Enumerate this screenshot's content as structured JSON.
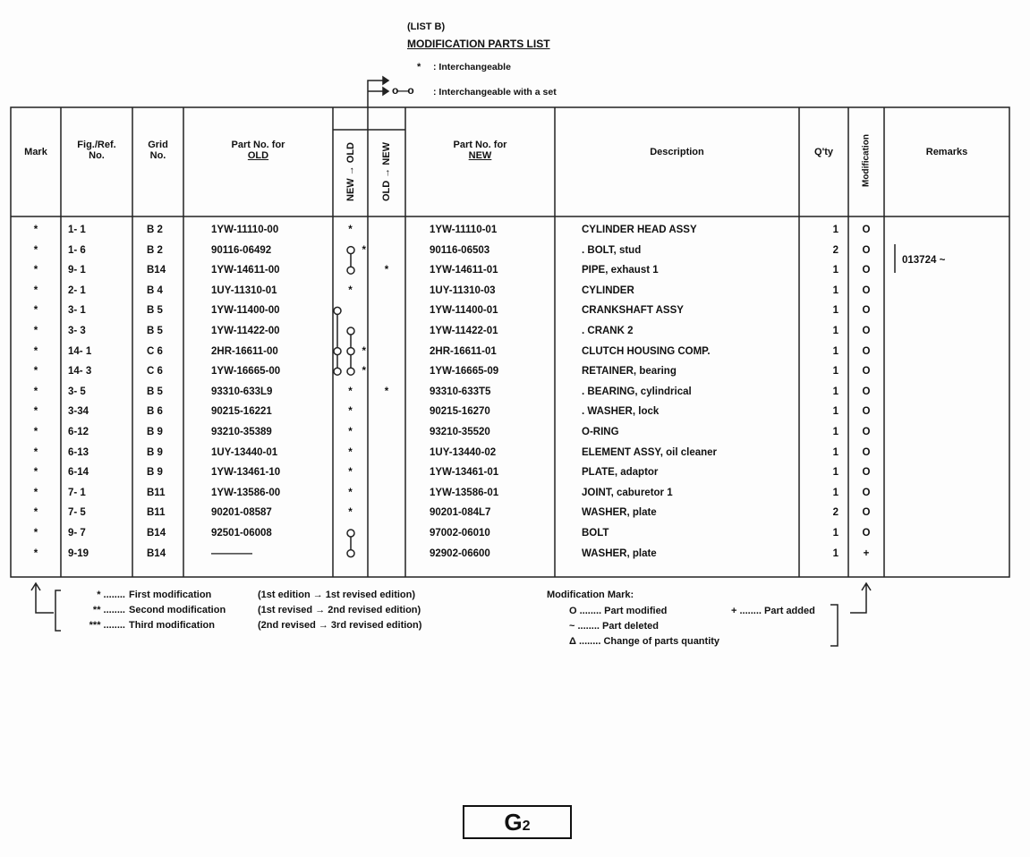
{
  "title": {
    "list": "(LIST B)",
    "heading": "MODIFICATION PARTS LIST"
  },
  "interchange_legend": [
    {
      "symbol": "*",
      "text": ": Interchangeable"
    },
    {
      "symbol": "o—o",
      "text": ": Interchangeable with a set"
    }
  ],
  "columns": {
    "mark": "Mark",
    "fig_ref_1": "Fig./Ref.",
    "fig_ref_2": "No.",
    "grid_1": "Grid",
    "grid_2": "No.",
    "old_1": "Part No. for",
    "old_2": "OLD",
    "new_to_old": "NEW → OLD",
    "old_to_new": "OLD → NEW",
    "new_1": "Part No. for",
    "new_2": "NEW",
    "description": "Description",
    "qty": "Q'ty",
    "modification": "Modification",
    "remarks": "Remarks"
  },
  "rows": [
    {
      "mark": "*",
      "fig": "1- 1",
      "grid": "B 2",
      "old": "1YW-11110-00",
      "n2o": "*",
      "o2n": "",
      "new": "1YW-11110-01",
      "desc": "CYLINDER HEAD ASSY",
      "qty": "1",
      "mod": "O"
    },
    {
      "mark": "*",
      "fig": "1- 6",
      "grid": "B 2",
      "old": "90116-06492",
      "n2o": "*",
      "o2n": "",
      "new": "90116-06503",
      "desc": ". BOLT, stud",
      "qty": "2",
      "mod": "O"
    },
    {
      "mark": "*",
      "fig": "9- 1",
      "grid": "B14",
      "old": "1YW-14611-00",
      "n2o": "",
      "o2n": "*",
      "new": "1YW-14611-01",
      "desc": "PIPE, exhaust 1",
      "qty": "1",
      "mod": "O"
    },
    {
      "mark": "*",
      "fig": "2- 1",
      "grid": "B 4",
      "old": "1UY-11310-01",
      "n2o": "*",
      "o2n": "",
      "new": "1UY-11310-03",
      "desc": "CYLINDER",
      "qty": "1",
      "mod": "O"
    },
    {
      "mark": "*",
      "fig": "3- 1",
      "grid": "B 5",
      "old": "1YW-11400-00",
      "n2o": "",
      "o2n": "",
      "new": "1YW-11400-01",
      "desc": "CRANKSHAFT ASSY",
      "qty": "1",
      "mod": "O"
    },
    {
      "mark": "*",
      "fig": "3- 3",
      "grid": "B 5",
      "old": "1YW-11422-00",
      "n2o": "",
      "o2n": "",
      "new": "1YW-11422-01",
      "desc": ". CRANK 2",
      "qty": "1",
      "mod": "O"
    },
    {
      "mark": "*",
      "fig": "14- 1",
      "grid": "C 6",
      "old": "2HR-16611-00",
      "n2o": "*",
      "o2n": "",
      "new": "2HR-16611-01",
      "desc": "CLUTCH HOUSING COMP.",
      "qty": "1",
      "mod": "O"
    },
    {
      "mark": "*",
      "fig": "14- 3",
      "grid": "C 6",
      "old": "1YW-16665-00",
      "n2o": "*",
      "o2n": "",
      "new": "1YW-16665-09",
      "desc": "RETAINER, bearing",
      "qty": "1",
      "mod": "O"
    },
    {
      "mark": "*",
      "fig": "3- 5",
      "grid": "B 5",
      "old": "93310-633L9",
      "n2o": "*",
      "o2n": "*",
      "new": "93310-633T5",
      "desc": ". BEARING, cylindrical",
      "qty": "1",
      "mod": "O"
    },
    {
      "mark": "*",
      "fig": "3-34",
      "grid": "B 6",
      "old": "90215-16221",
      "n2o": "*",
      "o2n": "",
      "new": "90215-16270",
      "desc": ". WASHER, lock",
      "qty": "1",
      "mod": "O"
    },
    {
      "mark": "*",
      "fig": "6-12",
      "grid": "B 9",
      "old": "93210-35389",
      "n2o": "*",
      "o2n": "",
      "new": "93210-35520",
      "desc": "O-RING",
      "qty": "1",
      "mod": "O"
    },
    {
      "mark": "*",
      "fig": "6-13",
      "grid": "B 9",
      "old": "1UY-13440-01",
      "n2o": "*",
      "o2n": "",
      "new": "1UY-13440-02",
      "desc": "ELEMENT ASSY, oil cleaner",
      "qty": "1",
      "mod": "O"
    },
    {
      "mark": "*",
      "fig": "6-14",
      "grid": "B 9",
      "old": "1YW-13461-10",
      "n2o": "*",
      "o2n": "",
      "new": "1YW-13461-01",
      "desc": "PLATE, adaptor",
      "qty": "1",
      "mod": "O"
    },
    {
      "mark": "*",
      "fig": "7- 1",
      "grid": "B11",
      "old": "1YW-13586-00",
      "n2o": "*",
      "o2n": "",
      "new": "1YW-13586-01",
      "desc": "JOINT, caburetor 1",
      "qty": "1",
      "mod": "O"
    },
    {
      "mark": "*",
      "fig": "7- 5",
      "grid": "B11",
      "old": "90201-08587",
      "n2o": "*",
      "o2n": "",
      "new": "90201-084L7",
      "desc": "WASHER, plate",
      "qty": "2",
      "mod": "O"
    },
    {
      "mark": "*",
      "fig": "9- 7",
      "grid": "B14",
      "old": "92501-06008",
      "n2o": "",
      "o2n": "",
      "new": "97002-06010",
      "desc": "BOLT",
      "qty": "1",
      "mod": "O"
    },
    {
      "mark": "*",
      "fig": "9-19",
      "grid": "B14",
      "old": "————",
      "n2o": "",
      "o2n": "",
      "new": "92902-06600",
      "desc": "WASHER, plate",
      "qty": "1",
      "mod": "+"
    }
  ],
  "set_links": [
    {
      "from": 1,
      "to": 2,
      "lane": 1
    },
    {
      "from": 4,
      "to": 7,
      "lane": 0,
      "circles": [
        4,
        6,
        7
      ]
    },
    {
      "from": 5,
      "to": 7,
      "lane": 1,
      "circles": [
        5,
        6,
        7
      ]
    },
    {
      "from": 15,
      "to": 16,
      "lane": 1
    }
  ],
  "remarks": {
    "text": "013724 ~",
    "rows": [
      1,
      2
    ]
  },
  "footer_marks": [
    {
      "sym": "* ........",
      "text": "First modification",
      "range": "(1st edition → 1st revised edition)"
    },
    {
      "sym": "** ........",
      "text": "Second modification",
      "range": "(1st revised → 2nd revised edition)"
    },
    {
      "sym": "*** ........",
      "text": "Third modification",
      "range": "(2nd revised → 3rd revised edition)"
    }
  ],
  "modification_mark": {
    "title": "Modification Mark:",
    "items": [
      "O ........ Part modified",
      "+ ........ Part added",
      "~ ........ Part deleted",
      "Δ ........ Change of parts quantity"
    ]
  },
  "page_number": {
    "main": "G",
    "sub": "2"
  }
}
